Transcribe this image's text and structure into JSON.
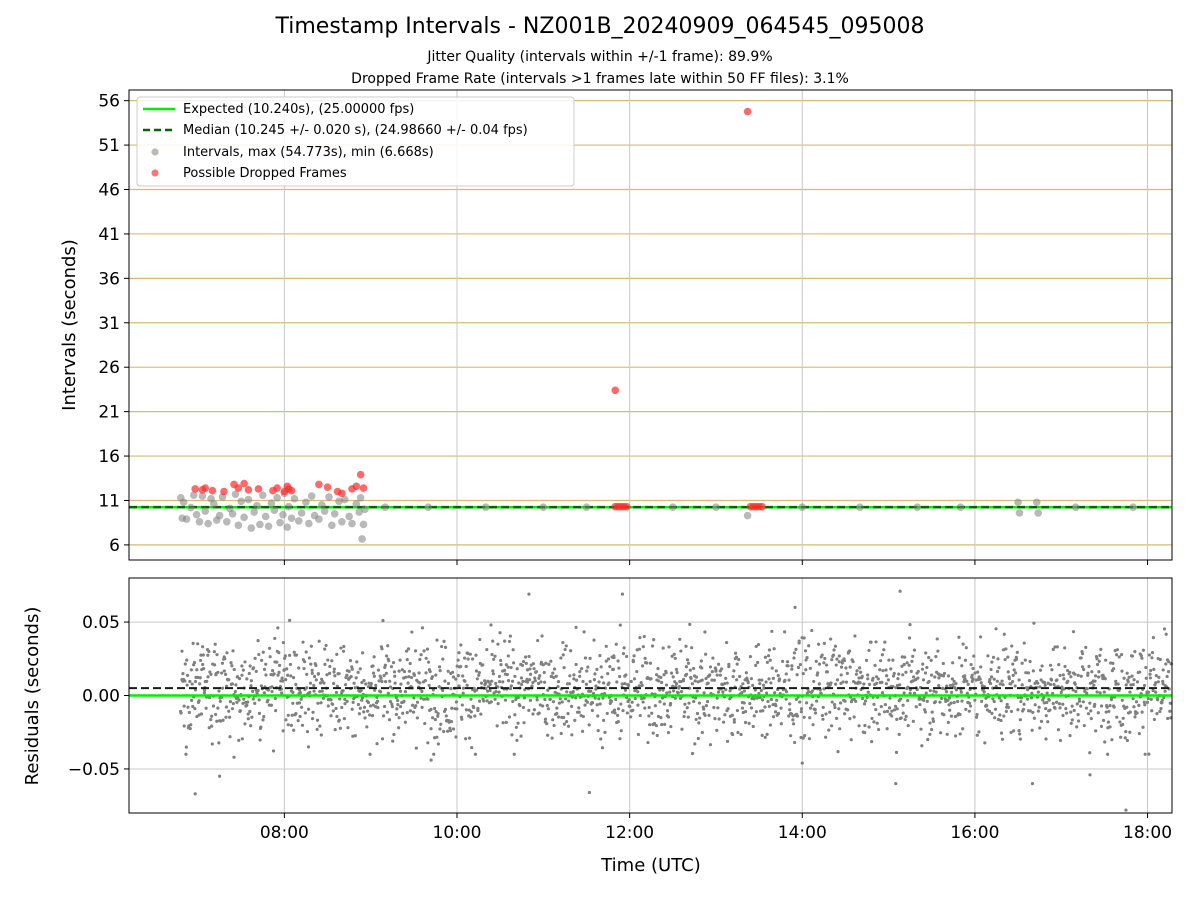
{
  "title": "Timestamp Intervals - NZ001B_20240909_064545_095008",
  "subtitle1": "Jitter Quality (intervals within +/-1 frame): 89.9%",
  "subtitle2": "Dropped Frame Rate (intervals >1 frames late within 50 FF files): 3.1%",
  "colors": {
    "expected": "#00ee00",
    "median": "#006400",
    "intervals": "#808080",
    "dropped": "#ff2a2a",
    "hgrid_top": "#d4bc74",
    "grid": "#c8c8c8"
  },
  "chart_data": [
    {
      "type": "scatter",
      "panel": "top",
      "ylabel": "Intervals (seconds)",
      "xlim": [
        "06:12",
        "18:17"
      ],
      "ylim": [
        4.3,
        57.2
      ],
      "yticks": [
        "6",
        "11",
        "16",
        "21",
        "26",
        "31",
        "36",
        "41",
        "46",
        "51",
        "56"
      ],
      "xticks": [
        "08:00",
        "10:00",
        "12:00",
        "14:00",
        "16:00",
        "18:00"
      ],
      "legend_position": "upper-left",
      "legend": [
        "Expected (10.240s), (25.00000 fps)",
        "Median (10.245 +/- 0.020 s), (24.98660 +/- 0.04 fps)",
        "Intervals, max (54.773s), min (6.668s)",
        "Possible Dropped Frames"
      ],
      "expected": 10.24,
      "median": 10.245,
      "series": [
        {
          "name": "Intervals, max (54.773s), min (6.668s)",
          "points": [
            {
              "x": "06:48",
              "y": 11.3
            },
            {
              "x": "06:49",
              "y": 9.0
            },
            {
              "x": "06:50",
              "y": 10.8
            },
            {
              "x": "06:52",
              "y": 8.9
            },
            {
              "x": "06:55",
              "y": 10.2
            },
            {
              "x": "06:57",
              "y": 11.6
            },
            {
              "x": "06:59",
              "y": 9.4
            },
            {
              "x": "07:01",
              "y": 8.6
            },
            {
              "x": "07:03",
              "y": 11.5
            },
            {
              "x": "07:05",
              "y": 9.8
            },
            {
              "x": "07:07",
              "y": 8.4
            },
            {
              "x": "07:09",
              "y": 11.2
            },
            {
              "x": "07:11",
              "y": 10.6
            },
            {
              "x": "07:13",
              "y": 8.8
            },
            {
              "x": "07:15",
              "y": 9.3
            },
            {
              "x": "07:17",
              "y": 11.4
            },
            {
              "x": "07:20",
              "y": 8.6
            },
            {
              "x": "07:22",
              "y": 10.1
            },
            {
              "x": "07:24",
              "y": 9.5
            },
            {
              "x": "07:26",
              "y": 11.7
            },
            {
              "x": "07:28",
              "y": 8.2
            },
            {
              "x": "07:30",
              "y": 10.9
            },
            {
              "x": "07:32",
              "y": 9.1
            },
            {
              "x": "07:35",
              "y": 11.1
            },
            {
              "x": "07:37",
              "y": 7.9
            },
            {
              "x": "07:39",
              "y": 9.7
            },
            {
              "x": "07:41",
              "y": 10.4
            },
            {
              "x": "07:43",
              "y": 8.3
            },
            {
              "x": "07:45",
              "y": 11.6
            },
            {
              "x": "07:47",
              "y": 9.2
            },
            {
              "x": "07:49",
              "y": 8.1
            },
            {
              "x": "07:51",
              "y": 10.7
            },
            {
              "x": "07:53",
              "y": 9.9
            },
            {
              "x": "07:55",
              "y": 11.3
            },
            {
              "x": "07:57",
              "y": 8.5
            },
            {
              "x": "07:59",
              "y": 9.4
            },
            {
              "x": "08:00",
              "y": 11.8
            },
            {
              "x": "08:02",
              "y": 8.0
            },
            {
              "x": "08:03",
              "y": 10.3
            },
            {
              "x": "08:05",
              "y": 9.0
            },
            {
              "x": "08:07",
              "y": 11.2
            },
            {
              "x": "08:10",
              "y": 8.7
            },
            {
              "x": "08:12",
              "y": 9.6
            },
            {
              "x": "08:15",
              "y": 10.8
            },
            {
              "x": "08:17",
              "y": 8.4
            },
            {
              "x": "08:19",
              "y": 11.5
            },
            {
              "x": "08:21",
              "y": 9.3
            },
            {
              "x": "08:24",
              "y": 8.9
            },
            {
              "x": "08:26",
              "y": 10.5
            },
            {
              "x": "08:28",
              "y": 9.8
            },
            {
              "x": "08:31",
              "y": 11.4
            },
            {
              "x": "08:33",
              "y": 8.2
            },
            {
              "x": "08:35",
              "y": 9.5
            },
            {
              "x": "08:38",
              "y": 10.9
            },
            {
              "x": "08:40",
              "y": 8.6
            },
            {
              "x": "08:42",
              "y": 11.1
            },
            {
              "x": "08:45",
              "y": 9.2
            },
            {
              "x": "08:47",
              "y": 8.4
            },
            {
              "x": "08:50",
              "y": 10.6
            },
            {
              "x": "08:52",
              "y": 9.7
            },
            {
              "x": "08:53",
              "y": 11.3
            },
            {
              "x": "08:54",
              "y": 6.668
            },
            {
              "x": "08:55",
              "y": 8.3
            },
            {
              "x": "08:56",
              "y": 10.0
            },
            {
              "x": "09:10",
              "y": 10.24
            },
            {
              "x": "09:40",
              "y": 10.24
            },
            {
              "x": "10:20",
              "y": 10.24
            },
            {
              "x": "11:00",
              "y": 10.24
            },
            {
              "x": "11:30",
              "y": 10.24
            },
            {
              "x": "12:30",
              "y": 10.24
            },
            {
              "x": "13:00",
              "y": 10.24
            },
            {
              "x": "13:22",
              "y": 9.3
            },
            {
              "x": "14:00",
              "y": 10.24
            },
            {
              "x": "14:40",
              "y": 10.24
            },
            {
              "x": "15:20",
              "y": 10.24
            },
            {
              "x": "15:50",
              "y": 10.24
            },
            {
              "x": "16:30",
              "y": 10.8
            },
            {
              "x": "16:31",
              "y": 9.6
            },
            {
              "x": "16:43",
              "y": 10.8
            },
            {
              "x": "16:44",
              "y": 9.6
            },
            {
              "x": "17:10",
              "y": 10.24
            },
            {
              "x": "17:50",
              "y": 10.24
            }
          ]
        },
        {
          "name": "Possible Dropped Frames",
          "points": [
            {
              "x": "06:58",
              "y": 12.3
            },
            {
              "x": "07:03",
              "y": 12.2
            },
            {
              "x": "07:05",
              "y": 12.4
            },
            {
              "x": "07:10",
              "y": 12.1
            },
            {
              "x": "07:18",
              "y": 12.0
            },
            {
              "x": "07:25",
              "y": 12.8
            },
            {
              "x": "07:28",
              "y": 12.4
            },
            {
              "x": "07:32",
              "y": 12.9
            },
            {
              "x": "07:35",
              "y": 12.2
            },
            {
              "x": "07:42",
              "y": 12.3
            },
            {
              "x": "07:52",
              "y": 12.1
            },
            {
              "x": "07:55",
              "y": 12.4
            },
            {
              "x": "08:00",
              "y": 12.0
            },
            {
              "x": "08:02",
              "y": 12.6
            },
            {
              "x": "08:03",
              "y": 12.3
            },
            {
              "x": "08:05",
              "y": 12.1
            },
            {
              "x": "08:24",
              "y": 12.8
            },
            {
              "x": "08:30",
              "y": 12.5
            },
            {
              "x": "08:37",
              "y": 12.0
            },
            {
              "x": "08:40",
              "y": 11.8
            },
            {
              "x": "08:47",
              "y": 12.3
            },
            {
              "x": "08:50",
              "y": 12.6
            },
            {
              "x": "08:53",
              "y": 13.9
            },
            {
              "x": "08:55",
              "y": 12.4
            },
            {
              "x": "11:50",
              "y": 23.4
            },
            {
              "x": "11:50",
              "y": 10.3
            },
            {
              "x": "11:52",
              "y": 10.3
            },
            {
              "x": "11:54",
              "y": 10.3
            },
            {
              "x": "11:56",
              "y": 10.3
            },
            {
              "x": "11:58",
              "y": 10.3
            },
            {
              "x": "13:22",
              "y": 54.773
            },
            {
              "x": "13:24",
              "y": 10.3
            },
            {
              "x": "13:26",
              "y": 10.3
            },
            {
              "x": "13:28",
              "y": 10.3
            },
            {
              "x": "13:30",
              "y": 10.3
            },
            {
              "x": "13:32",
              "y": 10.3
            }
          ]
        }
      ]
    },
    {
      "type": "scatter",
      "panel": "bottom",
      "xlabel": "Time (UTC)",
      "ylabel": "Residuals (seconds)",
      "xlim": [
        "06:12",
        "18:17"
      ],
      "ylim": [
        -0.08,
        0.08
      ],
      "yticks": [
        "0.05",
        "0.00",
        "−0.05"
      ],
      "ytick_values": [
        0.05,
        0.0,
        -0.05
      ],
      "xticks": [
        "08:00",
        "10:00",
        "12:00",
        "14:00",
        "16:00",
        "18:00"
      ],
      "expected": 0.0,
      "median": 0.005,
      "series": [
        {
          "name": "Residuals",
          "x_range": [
            "06:48",
            "18:17"
          ],
          "approx_count": 2200,
          "typical_band": [
            -0.03,
            0.05
          ],
          "outliers": [
            {
              "x": "06:58",
              "y": -0.067
            },
            {
              "x": "07:15",
              "y": -0.055
            },
            {
              "x": "07:25",
              "y": -0.042
            },
            {
              "x": "09:42",
              "y": -0.044
            },
            {
              "x": "10:50",
              "y": 0.069
            },
            {
              "x": "11:32",
              "y": -0.066
            },
            {
              "x": "11:55",
              "y": 0.069
            },
            {
              "x": "13:55",
              "y": 0.06
            },
            {
              "x": "14:00",
              "y": -0.046
            },
            {
              "x": "15:05",
              "y": -0.06
            },
            {
              "x": "15:08",
              "y": 0.071
            },
            {
              "x": "16:40",
              "y": -0.06
            },
            {
              "x": "17:20",
              "y": -0.054
            },
            {
              "x": "17:45",
              "y": -0.078
            }
          ]
        }
      ]
    }
  ]
}
